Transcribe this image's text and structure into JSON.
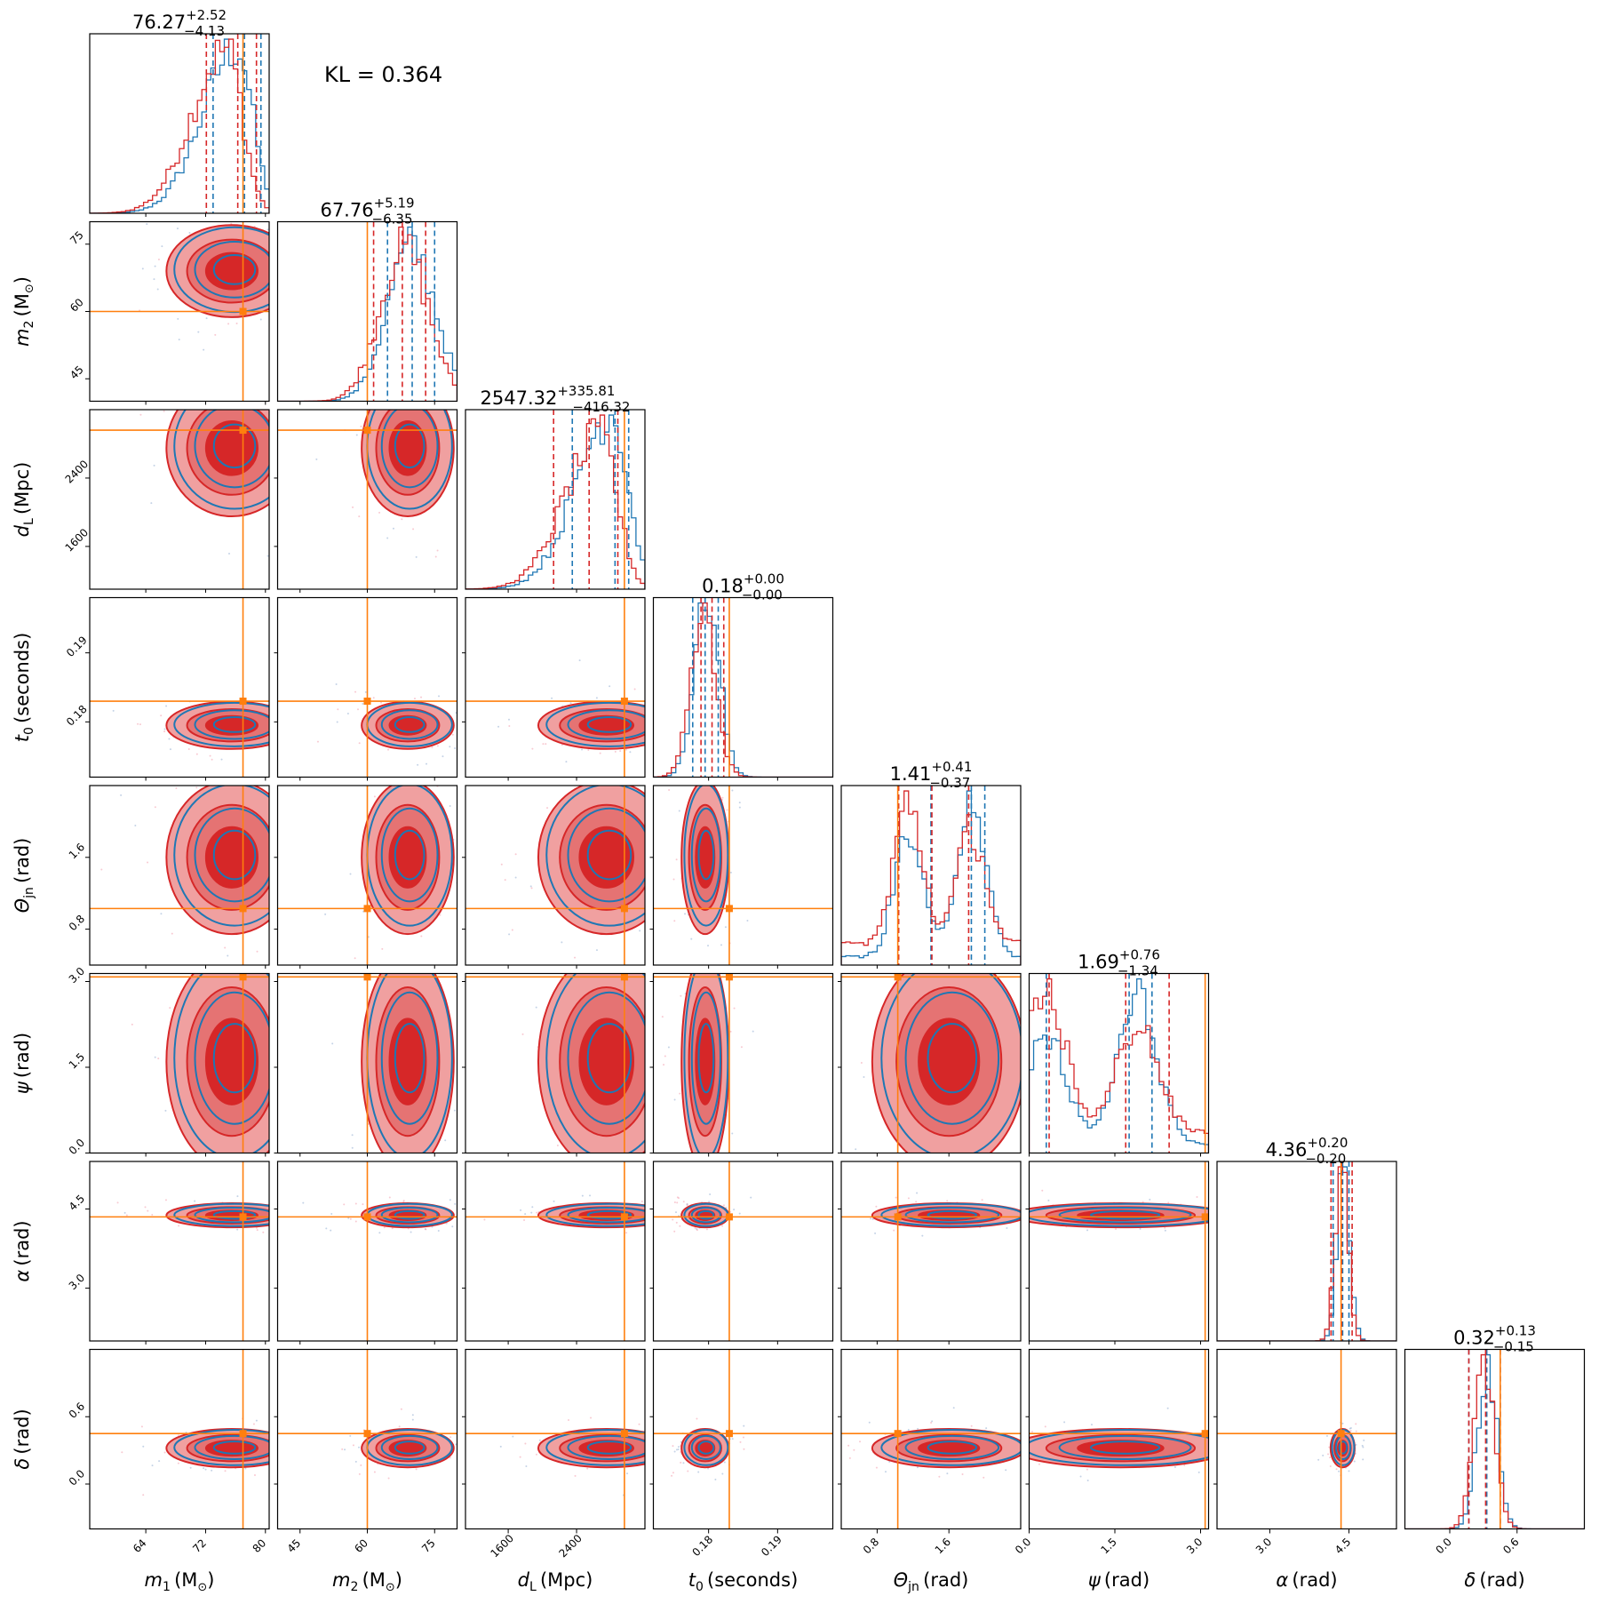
{
  "chart_data": {
    "type": "corner",
    "annotation": "KL = 0.364",
    "colors": {
      "blue": "#1f77b4",
      "red": "#d62728",
      "red_light": "#f0a0a0",
      "red_mid": "#e57373",
      "truth": "#ff7f0e"
    },
    "parameters": [
      {
        "label": "m",
        "sub": "1",
        "unit": "(M",
        "unit_sub": "⊙",
        "unit_end": ")",
        "range": [
          56.5,
          80.5
        ],
        "ticks": [
          64,
          72,
          80
        ],
        "truth": 77,
        "title_main": "76.27",
        "title_plus": "+2.52",
        "title_minus": "−4.13",
        "dist_center": 75.5,
        "dist_width": 4.6,
        "skew": -1,
        "quantiles_blue": [
          73.0,
          77.2,
          79.4
        ],
        "quantiles_red": [
          72.1,
          76.3,
          78.8
        ]
      },
      {
        "label": "m",
        "sub": "2",
        "unit": "(M",
        "unit_sub": "⊙",
        "unit_end": ")",
        "range": [
          40,
          80
        ],
        "ticks": [
          45,
          60,
          75
        ],
        "truth": 60,
        "title_main": "67.76",
        "title_plus": "+5.19",
        "title_minus": "−6.35",
        "dist_center": 69,
        "dist_width": 5.4,
        "skew": 0,
        "quantiles_blue": [
          64.5,
          70.0,
          75.0
        ],
        "quantiles_red": [
          61.4,
          67.8,
          73.0
        ]
      },
      {
        "label": "d",
        "sub": "L",
        "unit": "(Mpc)",
        "unit_sub": "",
        "unit_end": "",
        "range": [
          1100,
          3200
        ],
        "ticks": [
          1600,
          2400
        ],
        "truth": 2960,
        "title_main": "2547.32",
        "title_plus": "+335.81",
        "title_minus": "−416.32",
        "dist_center": 2750,
        "dist_width": 420,
        "skew": -1,
        "quantiles_blue": [
          2350,
          2850,
          3010
        ],
        "quantiles_red": [
          2131,
          2547,
          2883
        ]
      },
      {
        "label": "t",
        "sub": "0",
        "unit": "(seconds)",
        "unit_sub": "",
        "unit_end": "",
        "range": [
          0.172,
          0.198
        ],
        "ticks": [
          0.18,
          0.19
        ],
        "tick_labels": [
          "0.18",
          "0.19"
        ],
        "truth": 0.183,
        "title_main": "0.18",
        "title_plus": "+0.00",
        "title_minus": "−0.00",
        "dist_center": 0.1795,
        "dist_width": 0.0018,
        "skew": 0,
        "quantiles_blue": [
          0.1777,
          0.1795,
          0.1814
        ],
        "quantiles_red": [
          0.1789,
          0.1805,
          0.1822
        ]
      },
      {
        "label": "Θ",
        "sub": "jn",
        "unit": "(rad)",
        "unit_sub": "",
        "unit_end": "",
        "range": [
          0.4,
          2.4
        ],
        "ticks": [
          0.8,
          1.6
        ],
        "truth": 1.03,
        "title_main": "1.41",
        "title_plus": "+0.41",
        "title_minus": "−0.37",
        "dist_center": 1.6,
        "dist_width": 0.45,
        "skew": 0,
        "bimodal": [
          1.15,
          1.85
        ],
        "quantiles_blue": [
          1.4,
          1.85,
          2.0
        ],
        "quantiles_red": [
          1.04,
          1.41,
          1.82
        ]
      },
      {
        "label": "ψ",
        "sub": "",
        "unit": "(rad)",
        "unit_sub": "",
        "unit_end": "",
        "range": [
          0,
          3.14
        ],
        "ticks": [
          0.0,
          1.5,
          3.0
        ],
        "tick_labels": [
          "0.0",
          "1.5",
          "3.0"
        ],
        "truth": 3.08,
        "title_main": "1.69",
        "title_plus": "+0.76",
        "title_minus": "−1.34",
        "dist_center": 1.6,
        "dist_width": 1.0,
        "skew": 0,
        "bimodal": [
          0.3,
          1.9
        ],
        "quantiles_blue": [
          0.3,
          1.75,
          2.15
        ],
        "quantiles_red": [
          0.35,
          1.69,
          2.45
        ]
      },
      {
        "label": "α",
        "sub": "",
        "unit": "(rad)",
        "unit_sub": "",
        "unit_end": "",
        "range": [
          2.0,
          5.4
        ],
        "ticks": [
          3.0,
          4.5
        ],
        "tick_labels": [
          "3.0",
          "4.5"
        ],
        "truth": 4.35,
        "title_main": "4.36",
        "title_plus": "+0.20",
        "title_minus": "−0.20",
        "dist_center": 4.38,
        "dist_width": 0.12,
        "skew": 0,
        "quantiles_blue": [
          4.2,
          4.38,
          4.5
        ],
        "quantiles_red": [
          4.16,
          4.36,
          4.56
        ]
      },
      {
        "label": "δ",
        "sub": "",
        "unit": "(rad)",
        "unit_sub": "",
        "unit_end": "",
        "range": [
          -0.4,
          1.2
        ],
        "ticks": [
          0.0,
          0.6
        ],
        "tick_labels": [
          "0.0",
          "0.6"
        ],
        "truth": 0.45,
        "title_main": "0.32",
        "title_plus": "+0.13",
        "title_minus": "−0.15",
        "dist_center": 0.32,
        "dist_width": 0.09,
        "skew": 0,
        "quantiles_blue": [
          0.17,
          0.33,
          0.45
        ],
        "quantiles_red": [
          0.17,
          0.32,
          0.45
        ]
      }
    ]
  }
}
